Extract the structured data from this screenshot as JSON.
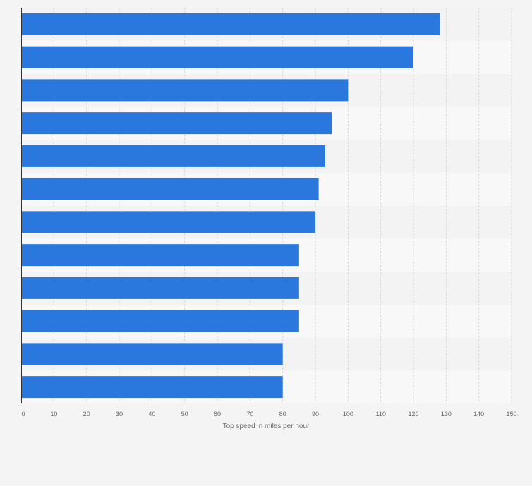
{
  "chart_data": {
    "type": "bar",
    "orientation": "horizontal",
    "title": "",
    "xlabel": "Top speed in miles per hour",
    "ylabel": "",
    "xlim": [
      0,
      150
    ],
    "ticks": [
      0,
      10,
      20,
      30,
      40,
      50,
      60,
      70,
      80,
      90,
      100,
      110,
      120,
      130,
      140,
      150
    ],
    "categories": [
      "",
      "",
      "",
      "",
      "",
      "",
      "",
      "",
      "",
      "",
      "",
      ""
    ],
    "values": [
      128,
      120,
      100,
      95,
      93,
      91,
      90,
      85,
      85,
      85,
      80,
      80
    ],
    "grid": true,
    "colors": {
      "bar": "#2a78de",
      "band_dark": "#f3f3f3",
      "band_light": "#f8f8f8",
      "grid": "#d8d8d8",
      "axis": "#333333",
      "text": "#666666",
      "background": "#f4f4f4"
    }
  }
}
